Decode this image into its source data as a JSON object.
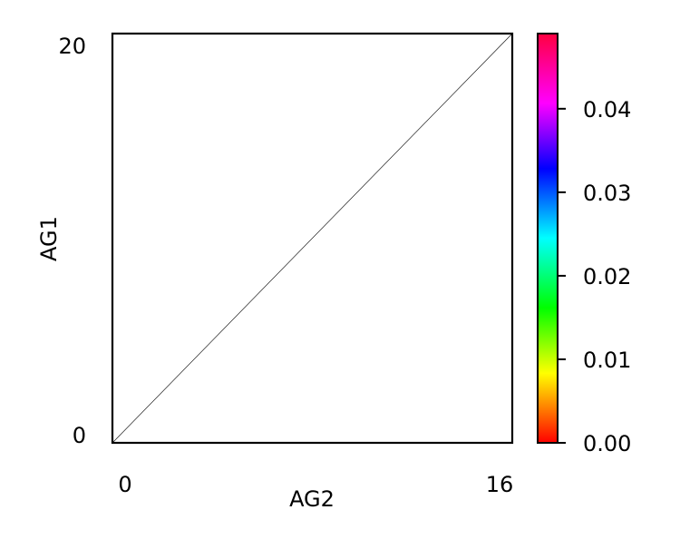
{
  "chart_data": {
    "type": "heatmap",
    "xlabel": "AG2",
    "ylabel": "AG1",
    "xlim": [
      0,
      16
    ],
    "ylim": [
      0,
      20
    ],
    "x_ticks": [
      "0",
      "16"
    ],
    "y_ticks": [
      "0",
      "20"
    ],
    "diagonal_line": {
      "from": [
        0,
        0
      ],
      "to": [
        16,
        20
      ]
    },
    "colorbar": {
      "colormap": "hsv",
      "range": [
        0,
        0.049
      ],
      "ticks": [
        0.0,
        0.01,
        0.02,
        0.03,
        0.04
      ],
      "tick_labels": [
        "0.00",
        "0.01",
        "0.02",
        "0.03",
        "0.04"
      ]
    }
  }
}
